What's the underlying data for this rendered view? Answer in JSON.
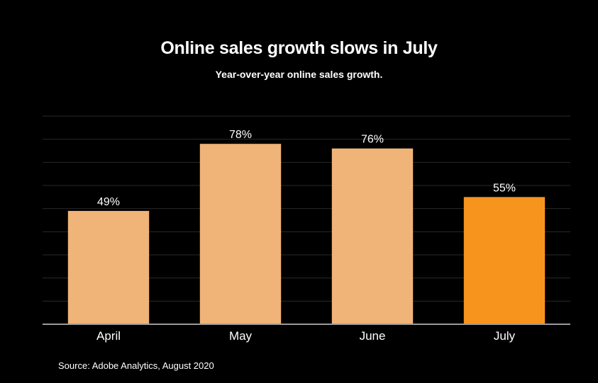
{
  "chart_data": {
    "type": "bar",
    "title": "Online sales growth slows in July",
    "subtitle": "Year-over-year online sales growth.",
    "categories": [
      "April",
      "May",
      "June",
      "July"
    ],
    "values": [
      49,
      78,
      76,
      55
    ],
    "data_labels": [
      "49%",
      "78%",
      "76%",
      "55%"
    ],
    "ylim": [
      0,
      90
    ],
    "grid": true,
    "colors": [
      "#F0B478",
      "#F0B478",
      "#F0B478",
      "#F7941E"
    ],
    "source": "Source: Adobe Analytics, August 2020"
  }
}
